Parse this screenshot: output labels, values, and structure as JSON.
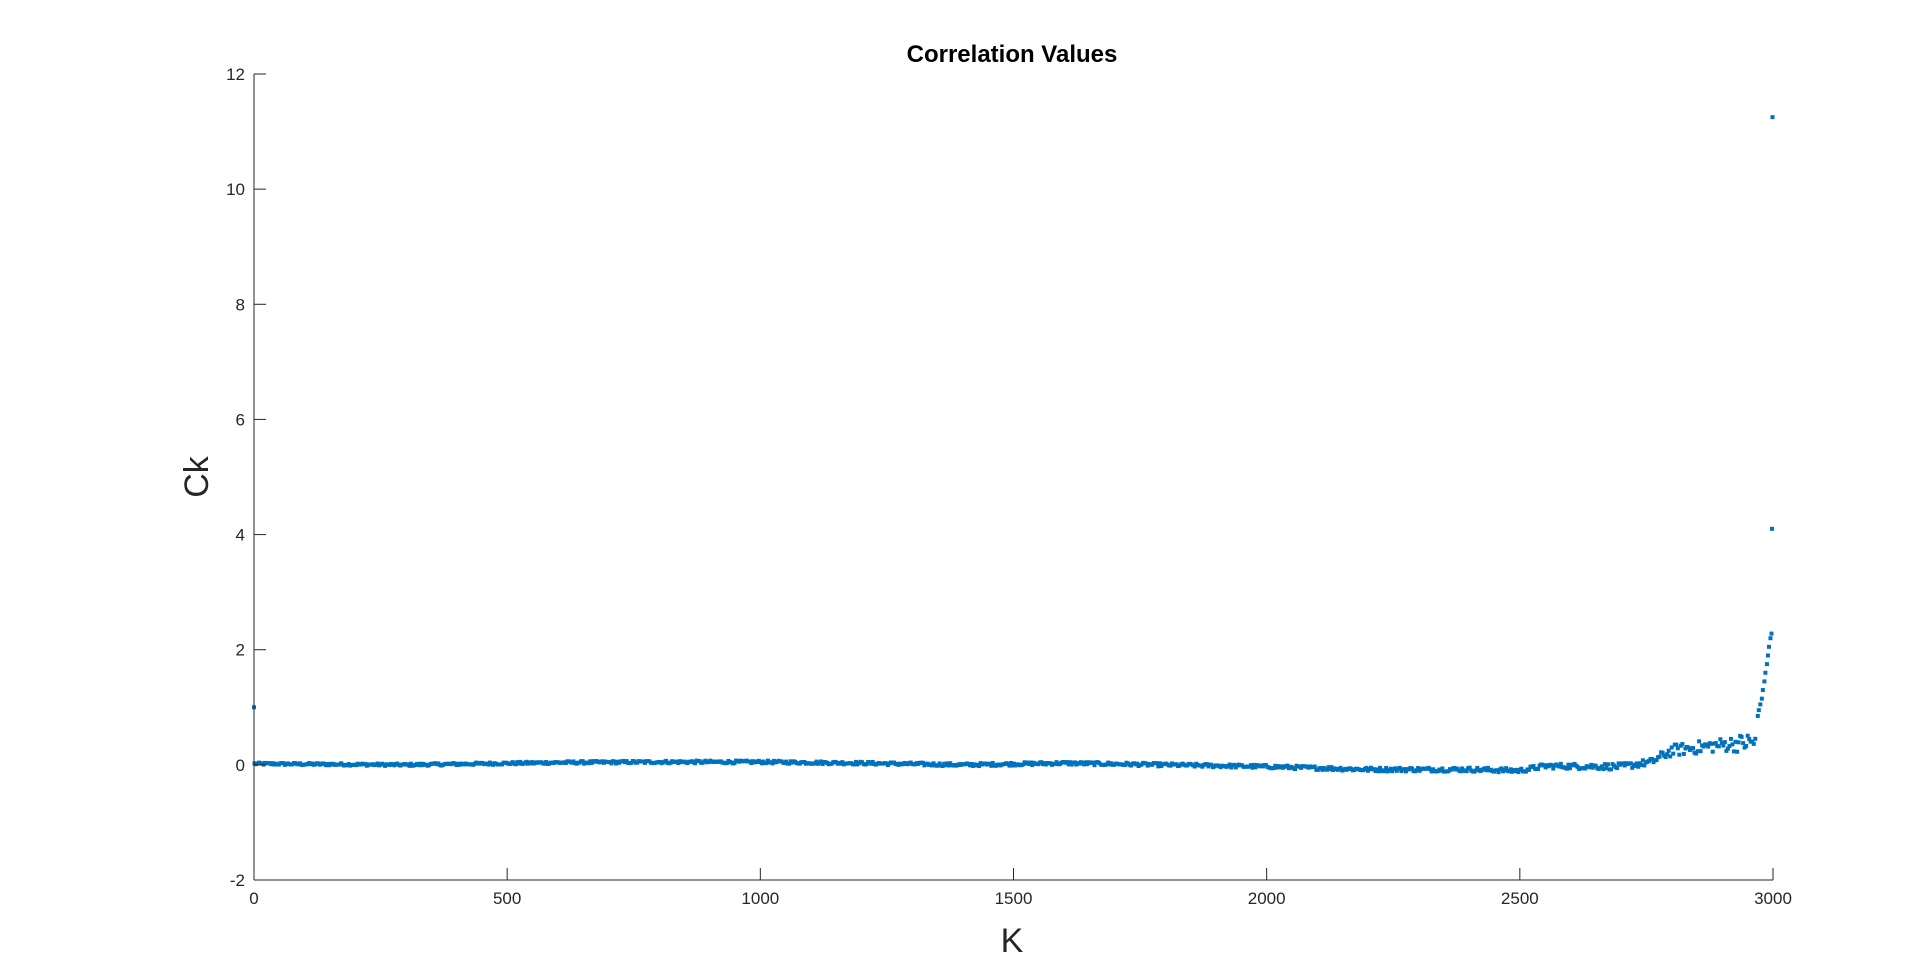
{
  "chart_data": {
    "type": "scatter",
    "title": "Correlation Values",
    "xlabel": "K",
    "ylabel": "Ck",
    "xlim": [
      0,
      3000
    ],
    "ylim": [
      -2,
      12
    ],
    "xticks": [
      "0",
      "500",
      "1000",
      "1500",
      "2000",
      "2500",
      "3000"
    ],
    "yticks": [
      "-2",
      "0",
      "2",
      "4",
      "6",
      "8",
      "10",
      "12"
    ],
    "grid": false,
    "legend": "none",
    "marker_color": "#0072BD",
    "series": [
      {
        "points": [
          [
            0,
            1.0
          ],
          [
            2999,
            11.25
          ],
          [
            2998,
            4.1
          ],
          [
            2997,
            2.28
          ],
          [
            2995,
            2.2
          ],
          [
            2992,
            2.05
          ],
          [
            2990,
            1.9
          ],
          [
            2988,
            1.75
          ],
          [
            2985,
            1.6
          ],
          [
            2983,
            1.45
          ],
          [
            2980,
            1.3
          ],
          [
            2978,
            1.15
          ],
          [
            2975,
            1.05
          ],
          [
            2972,
            0.95
          ],
          [
            2970,
            0.85
          ]
        ],
        "baseline": {
          "k_start": 1,
          "k_end": 2965,
          "k_step": 3,
          "trend": [
            [
              0,
              0.02
            ],
            [
              300,
              0.0
            ],
            [
              600,
              0.04
            ],
            [
              800,
              0.05
            ],
            [
              1000,
              0.05
            ],
            [
              1200,
              0.03
            ],
            [
              1400,
              0.0
            ],
            [
              1600,
              0.03
            ],
            [
              1800,
              0.0
            ],
            [
              2000,
              -0.03
            ],
            [
              2200,
              -0.08
            ],
            [
              2400,
              -0.08
            ],
            [
              2500,
              -0.1
            ],
            [
              2550,
              -0.02
            ],
            [
              2700,
              -0.03
            ],
            [
              2760,
              0.05
            ],
            [
              2800,
              0.25
            ],
            [
              2900,
              0.35
            ],
            [
              2965,
              0.4
            ]
          ],
          "noise": [
            [
              0,
              0.02
            ],
            [
              2000,
              0.03
            ],
            [
              2500,
              0.04
            ],
            [
              2760,
              0.06
            ],
            [
              2800,
              0.1
            ],
            [
              2900,
              0.12
            ],
            [
              2965,
              0.18
            ]
          ]
        }
      }
    ]
  }
}
